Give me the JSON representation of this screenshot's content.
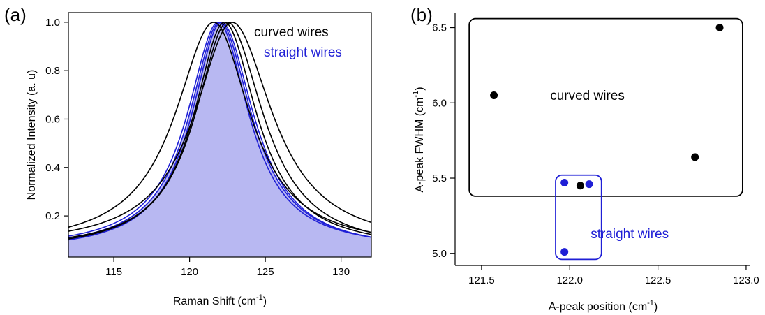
{
  "colors": {
    "black": "#000000",
    "blue": "#1f1fd6",
    "fill": "#b8b8f2"
  },
  "chart_data": [
    {
      "panel": "(a)",
      "type": "line",
      "xlabel": "Raman Shift (cm",
      "xlabel_sup": "-1",
      "xlabel_end": ")",
      "ylabel": "Normalized Intensity (a. u)",
      "xlim": [
        112,
        132
      ],
      "ylim": [
        0.03,
        1.04
      ],
      "xticks": [
        115,
        120,
        125,
        130
      ],
      "yticks": [
        0.2,
        0.4,
        0.6,
        0.8,
        1.0
      ],
      "ytick_labels": [
        "0.2",
        "0.4",
        "0.6",
        "0.8",
        "1.0"
      ],
      "legend": [
        {
          "name": "curved wires",
          "color": "#000000"
        },
        {
          "name": "straight wires",
          "color": "#1f1fd6"
        }
      ],
      "series": [
        {
          "name": "straight wires",
          "color": "#1f1fd6",
          "center": 122.0,
          "hw_left": 2.45,
          "hw_right": 2.55,
          "base": 0.055,
          "filled": true
        },
        {
          "name": "straight wires",
          "color": "#1f1fd6",
          "center": 121.9,
          "hw_left": 2.5,
          "hw_right": 2.45,
          "base": 0.06
        },
        {
          "name": "straight wires",
          "color": "#1f1fd6",
          "center": 122.1,
          "hw_left": 2.4,
          "hw_right": 2.6,
          "base": 0.05
        },
        {
          "name": "curved wires",
          "color": "#000000",
          "center": 121.6,
          "hw_left": 3.1,
          "hw_right": 2.9,
          "base": 0.065
        },
        {
          "name": "curved wires",
          "color": "#000000",
          "center": 122.3,
          "hw_left": 2.45,
          "hw_right": 2.6,
          "base": 0.06
        },
        {
          "name": "curved wires",
          "color": "#000000",
          "center": 122.8,
          "hw_left": 3.0,
          "hw_right": 3.25,
          "base": 0.07
        },
        {
          "name": "curved wires",
          "color": "#000000",
          "center": 122.5,
          "hw_left": 2.6,
          "hw_right": 2.9,
          "base": 0.05
        }
      ]
    },
    {
      "panel": "(b)",
      "type": "scatter",
      "xlabel": "A-peak position (cm",
      "xlabel_sup": "-1",
      "xlabel_end": ")",
      "ylabel": "A-peak FWHM (cm",
      "ylabel_sup": "-1",
      "ylabel_end": ")",
      "xlim": [
        121.35,
        123.02
      ],
      "ylim": [
        4.92,
        6.6
      ],
      "xticks": [
        121.5,
        122.0,
        122.5,
        123.0
      ],
      "xtick_labels": [
        "121.5",
        "122.0",
        "122.5",
        "123.0"
      ],
      "yticks": [
        5.0,
        5.5,
        6.0,
        6.5
      ],
      "ytick_labels": [
        "5.0",
        "5.5",
        "6.0",
        "6.5"
      ],
      "series": [
        {
          "name": "curved wires",
          "color": "#000000",
          "x": [
            121.57,
            122.06,
            122.71,
            122.85
          ],
          "y": [
            6.05,
            5.45,
            5.64,
            6.5
          ]
        },
        {
          "name": "straight wires",
          "color": "#1f1fd6",
          "x": [
            121.97,
            122.11,
            121.97
          ],
          "y": [
            5.47,
            5.46,
            5.01
          ]
        }
      ],
      "annotations": [
        {
          "text": "curved wires",
          "color": "#000000",
          "x": 122.1,
          "y": 6.02
        },
        {
          "text": "straight wires",
          "color": "#1f1fd6",
          "x": 122.34,
          "y": 5.1
        }
      ],
      "regions": [
        {
          "color": "#000000",
          "x0": 121.43,
          "x1": 122.98,
          "y0": 5.38,
          "y1": 6.56
        },
        {
          "color": "#1f1fd6",
          "x0": 121.92,
          "x1": 122.18,
          "y0": 4.96,
          "y1": 5.52
        }
      ]
    }
  ]
}
